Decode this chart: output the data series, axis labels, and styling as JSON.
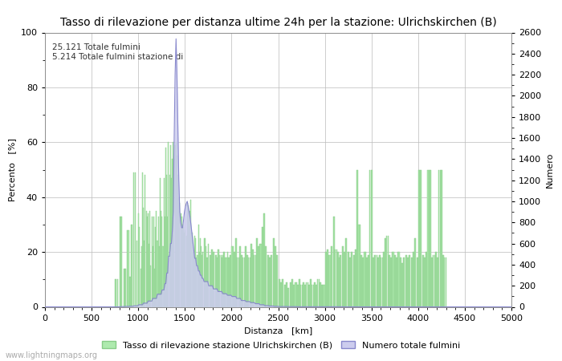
{
  "title": "Tasso di rilevazione per distanza ultime 24h per la stazione: Ulrichskirchen (B)",
  "xlabel": "Distanza   [km]",
  "ylabel_left": "Percento   [%]",
  "ylabel_right": "Numero",
  "annotation": "25.121 Totale fulmini\n5.214 Totale fulmini stazione di",
  "legend_green": "Tasso di rilevazione stazione Ulrichskirchen (B)",
  "legend_blue": "Numero totale fulmini",
  "watermark": "www.lightningmaps.org",
  "xlim": [
    0,
    5000
  ],
  "ylim_left": [
    0,
    100
  ],
  "ylim_right": [
    0,
    2600
  ],
  "yticks_left": [
    0,
    20,
    40,
    60,
    80,
    100
  ],
  "yticks_right": [
    0,
    200,
    400,
    600,
    800,
    1000,
    1200,
    1400,
    1600,
    1800,
    2000,
    2200,
    2400,
    2600
  ],
  "xticks": [
    0,
    500,
    1000,
    1500,
    2000,
    2500,
    3000,
    3500,
    4000,
    4500,
    5000
  ],
  "bar_color": "#aeeaae",
  "bar_edge_color": "#88cc88",
  "line_color": "#8888cc",
  "line_fill_color": "#ccccee",
  "bg_color": "#FFFFFF",
  "grid_color": "#bbbbbb",
  "title_fontsize": 10,
  "label_fontsize": 8,
  "tick_fontsize": 8
}
